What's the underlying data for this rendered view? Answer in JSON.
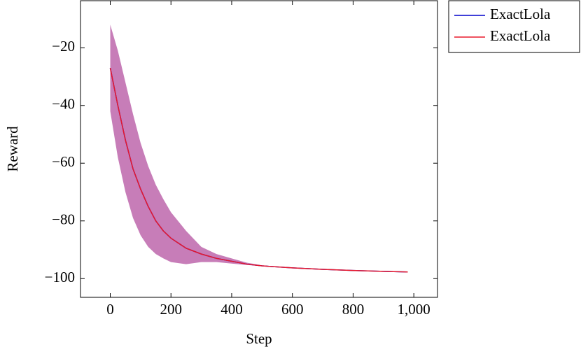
{
  "chart_data": {
    "type": "line",
    "xlabel": "Step",
    "ylabel": "Reward",
    "x": [
      0,
      25,
      50,
      75,
      100,
      125,
      150,
      175,
      200,
      250,
      300,
      350,
      400,
      450,
      500,
      600,
      700,
      800,
      900,
      980
    ],
    "series": [
      {
        "name": "ExactLola",
        "color": "#0000cc",
        "values": [
          -27,
          -40,
          -52,
          -62,
          -69,
          -75,
          -80,
          -83.5,
          -86,
          -89.5,
          -91.5,
          -93,
          -94,
          -95,
          -95.6,
          -96.3,
          -96.8,
          -97.2,
          -97.5,
          -97.7
        ]
      },
      {
        "name": "ExactLola",
        "color": "#e8192c",
        "values": [
          -27,
          -40,
          -52,
          -62,
          -69,
          -75,
          -80,
          -83.5,
          -86,
          -89.5,
          -91.5,
          -93,
          -94,
          -95,
          -95.6,
          -96.3,
          -96.8,
          -97.2,
          -97.5,
          -97.7
        ]
      }
    ],
    "band": {
      "color": "#c77db8",
      "upper": [
        -12,
        -21,
        -32,
        -43,
        -53,
        -61,
        -67.5,
        -72.5,
        -77,
        -83.5,
        -89,
        -91.5,
        -93,
        -94.5,
        -95.4,
        -96.3,
        -96.8,
        -97.2,
        -97.5,
        -97.7
      ],
      "lower": [
        -42,
        -58,
        -70,
        -79,
        -85,
        -89,
        -91.5,
        -93,
        -94.3,
        -95,
        -94.3,
        -94.3,
        -94.8,
        -95.3,
        -95.7,
        -96.3,
        -96.8,
        -97.2,
        -97.5,
        -97.7
      ]
    },
    "xlim": [
      -98,
      1078
    ],
    "ylim": [
      -106.5,
      -3.7
    ],
    "xticks": [
      0,
      200,
      400,
      600,
      800,
      {
        "value": 1000,
        "label": "1,000"
      }
    ],
    "yticks": [
      {
        "value": -100,
        "label": "−100"
      },
      {
        "value": -80,
        "label": "−80"
      },
      {
        "value": -60,
        "label": "−60"
      },
      {
        "value": -40,
        "label": "−40"
      },
      {
        "value": -20,
        "label": "−20"
      }
    ],
    "grid": false,
    "legend": "outside-right"
  }
}
